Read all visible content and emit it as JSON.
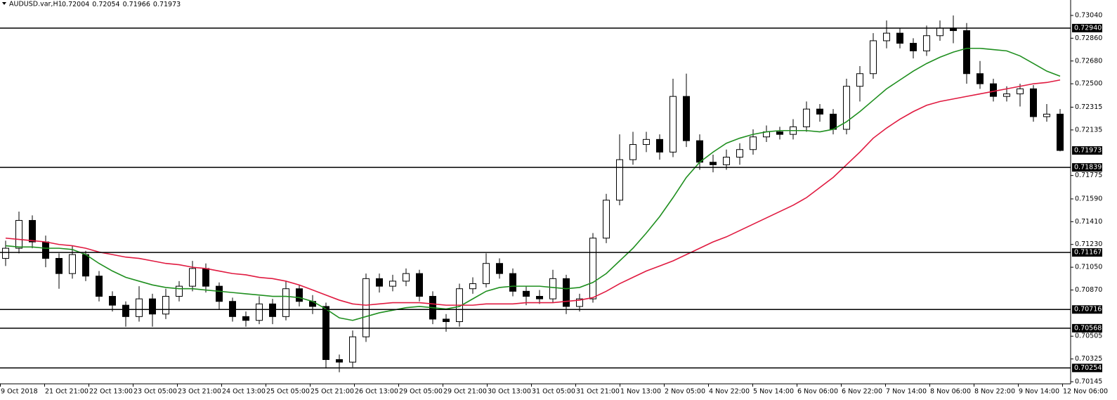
{
  "chart_data": {
    "type": "candlestick",
    "title": "AUDUSD.var,H1",
    "last_ohlc": [
      0.72004,
      0.72054,
      0.71966,
      0.71973
    ],
    "ylim": [
      0.70134,
      0.73162
    ],
    "yticks": [
      {
        "value": 0.7304,
        "label": "0.73040"
      },
      {
        "value": 0.7286,
        "label": "0.72860"
      },
      {
        "value": 0.7268,
        "label": "0.72680"
      },
      {
        "value": 0.725,
        "label": "0.72500"
      },
      0.72315,
      0.72135,
      0.71775,
      {
        "value": 0.7159,
        "label": "0.71590"
      },
      {
        "value": 0.7141,
        "label": "0.71410"
      },
      {
        "value": 0.7123,
        "label": "0.71230"
      },
      {
        "value": 0.7105,
        "label": "0.71050"
      },
      {
        "value": 0.7087,
        "label": "0.70870"
      },
      0.70505,
      0.70325,
      0.70145
    ],
    "levels": [
      {
        "value": 0.7294,
        "label": "0.72940"
      },
      0.71839,
      0.71167,
      0.70716,
      0.70568,
      0.70254
    ],
    "current_price": 0.71973,
    "time_labels": [
      "9 Oct 2018",
      "21 Oct 21:00",
      "22 Oct 13:00",
      "23 Oct 05:00",
      "23 Oct 21:00",
      "24 Oct 13:00",
      "25 Oct 05:00",
      "25 Oct 21:00",
      "26 Oct 13:00",
      "29 Oct 05:00",
      "29 Oct 21:00",
      "30 Oct 13:00",
      "31 Oct 05:00",
      "31 Oct 21:00",
      "1 Nov 13:00",
      "2 Nov 05:00",
      "4 Nov 22:00",
      "5 Nov 14:00",
      "6 Nov 06:00",
      "6 Nov 22:00",
      "7 Nov 14:00",
      "8 Nov 06:00",
      "8 Nov 22:00",
      "9 Nov 14:00",
      "12 Nov 06:00"
    ],
    "up_color": "#ffffff",
    "down_color": "#000000",
    "open": [
      0.7112,
      0.712,
      0.7142,
      0.7125,
      0.7112,
      0.71,
      0.7115,
      0.7098,
      0.7082,
      0.7075,
      0.7066,
      0.708,
      0.7068,
      0.7082,
      0.709,
      0.7104,
      0.709,
      0.7078,
      0.7066,
      0.7063,
      0.7076,
      0.7066,
      0.7088,
      0.7078,
      0.7074,
      0.7032,
      0.703,
      0.705,
      0.7096,
      0.709,
      0.7094,
      0.71,
      0.7082,
      0.7064,
      0.7062,
      0.7088,
      0.7092,
      0.7108,
      0.71,
      0.7086,
      0.7082,
      0.708,
      0.7096,
      0.7074,
      0.708,
      0.7128,
      0.7158,
      0.719,
      0.7202,
      0.7206,
      0.7196,
      0.724,
      0.7205,
      0.7188,
      0.7186,
      0.7192,
      0.7198,
      0.7208,
      0.7212,
      0.721,
      0.7216,
      0.723,
      0.7226,
      0.7214,
      0.7248,
      0.7258,
      0.7284,
      0.729,
      0.7282,
      0.7276,
      0.7288,
      0.7294,
      0.7292,
      0.7258,
      0.725,
      0.724,
      0.7242,
      0.7246,
      0.7224,
      0.7226
    ],
    "high": [
      0.7126,
      0.7149,
      0.7146,
      0.713,
      0.7116,
      0.7122,
      0.7118,
      0.7102,
      0.7086,
      0.7078,
      0.709,
      0.7084,
      0.7088,
      0.7094,
      0.711,
      0.7108,
      0.7093,
      0.7081,
      0.707,
      0.7082,
      0.708,
      0.7094,
      0.7091,
      0.7083,
      0.7077,
      0.7036,
      0.7055,
      0.71,
      0.71,
      0.7099,
      0.7104,
      0.7103,
      0.7086,
      0.7068,
      0.7092,
      0.7097,
      0.7116,
      0.7112,
      0.7104,
      0.709,
      0.7087,
      0.7103,
      0.7099,
      0.7084,
      0.7132,
      0.7163,
      0.721,
      0.7212,
      0.7212,
      0.721,
      0.7254,
      0.7258,
      0.721,
      0.7194,
      0.7198,
      0.7203,
      0.7214,
      0.7217,
      0.7216,
      0.7222,
      0.7236,
      0.7234,
      0.723,
      0.7254,
      0.7264,
      0.729,
      0.73,
      0.7294,
      0.7286,
      0.7296,
      0.73,
      0.7304,
      0.7298,
      0.7268,
      0.7254,
      0.7248,
      0.725,
      0.7249,
      0.7234,
      0.723
    ],
    "low": [
      0.7106,
      0.7116,
      0.712,
      0.7105,
      0.7088,
      0.7096,
      0.7094,
      0.7078,
      0.707,
      0.7058,
      0.7062,
      0.7058,
      0.7064,
      0.7078,
      0.7086,
      0.7085,
      0.7072,
      0.7062,
      0.7058,
      0.706,
      0.706,
      0.7063,
      0.7074,
      0.7068,
      0.7025,
      0.7022,
      0.7026,
      0.7046,
      0.7085,
      0.7086,
      0.709,
      0.7078,
      0.706,
      0.7054,
      0.7058,
      0.7084,
      0.7089,
      0.7096,
      0.7082,
      0.7075,
      0.7076,
      0.7077,
      0.7068,
      0.707,
      0.7077,
      0.7124,
      0.7154,
      0.7186,
      0.7196,
      0.719,
      0.7192,
      0.72,
      0.7182,
      0.718,
      0.7182,
      0.7186,
      0.7194,
      0.7204,
      0.7206,
      0.7206,
      0.7212,
      0.722,
      0.721,
      0.721,
      0.7236,
      0.7254,
      0.7278,
      0.7278,
      0.727,
      0.7272,
      0.7284,
      0.7282,
      0.725,
      0.7246,
      0.7236,
      0.7236,
      0.7232,
      0.722,
      0.722,
      0.71966
    ],
    "close": [
      0.712,
      0.7142,
      0.7125,
      0.7112,
      0.71,
      0.7115,
      0.7098,
      0.7082,
      0.7075,
      0.7066,
      0.708,
      0.7068,
      0.7082,
      0.709,
      0.7104,
      0.709,
      0.7078,
      0.7066,
      0.7063,
      0.7076,
      0.7066,
      0.7088,
      0.7078,
      0.7074,
      0.7032,
      0.703,
      0.705,
      0.7096,
      0.709,
      0.7094,
      0.71,
      0.7082,
      0.7064,
      0.7062,
      0.7088,
      0.7092,
      0.7108,
      0.71,
      0.7086,
      0.7082,
      0.708,
      0.7096,
      0.7074,
      0.708,
      0.7128,
      0.7158,
      0.719,
      0.7202,
      0.7206,
      0.7196,
      0.724,
      0.7205,
      0.7188,
      0.7186,
      0.7192,
      0.7198,
      0.7208,
      0.7212,
      0.721,
      0.7216,
      0.723,
      0.7226,
      0.7214,
      0.7248,
      0.7258,
      0.7284,
      0.729,
      0.7282,
      0.7276,
      0.7288,
      0.7294,
      0.7292,
      0.7258,
      0.725,
      0.724,
      0.7242,
      0.7246,
      0.7224,
      0.7226,
      0.71973
    ],
    "lines": [
      {
        "color": "#1f8f1f",
        "values": [
          0.7122,
          0.7121,
          0.7121,
          0.712,
          0.712,
          0.7119,
          0.7115,
          0.7108,
          0.7102,
          0.7097,
          0.7094,
          0.7091,
          0.7089,
          0.7088,
          0.7088,
          0.7087,
          0.7086,
          0.7085,
          0.7084,
          0.7083,
          0.7082,
          0.7082,
          0.7081,
          0.7078,
          0.7072,
          0.7065,
          0.7063,
          0.7066,
          0.7069,
          0.7071,
          0.7073,
          0.7074,
          0.7073,
          0.7072,
          0.7074,
          0.708,
          0.7086,
          0.7089,
          0.709,
          0.709,
          0.709,
          0.7089,
          0.7088,
          0.7089,
          0.7093,
          0.71,
          0.711,
          0.712,
          0.7132,
          0.7145,
          0.716,
          0.7176,
          0.7188,
          0.7196,
          0.7203,
          0.7207,
          0.721,
          0.7212,
          0.7213,
          0.7213,
          0.7213,
          0.7212,
          0.7214,
          0.722,
          0.7228,
          0.7237,
          0.7246,
          0.7253,
          0.726,
          0.7266,
          0.7271,
          0.7275,
          0.7278,
          0.7278,
          0.7277,
          0.7276,
          0.7272,
          0.7266,
          0.726,
          0.7256
        ]
      },
      {
        "color": "#e01a40",
        "values": [
          0.7128,
          0.7127,
          0.7126,
          0.7125,
          0.7123,
          0.7122,
          0.712,
          0.7117,
          0.7115,
          0.7113,
          0.7112,
          0.711,
          0.7108,
          0.7107,
          0.7105,
          0.7104,
          0.7102,
          0.71,
          0.7099,
          0.7097,
          0.7096,
          0.7094,
          0.7091,
          0.7087,
          0.7083,
          0.7079,
          0.7076,
          0.7075,
          0.7076,
          0.7077,
          0.7077,
          0.7077,
          0.7076,
          0.7075,
          0.7075,
          0.7075,
          0.7076,
          0.7076,
          0.7076,
          0.7077,
          0.7077,
          0.7077,
          0.7078,
          0.7079,
          0.7081,
          0.7086,
          0.7092,
          0.7097,
          0.7102,
          0.7106,
          0.711,
          0.7115,
          0.712,
          0.7125,
          0.7129,
          0.7134,
          0.7139,
          0.7144,
          0.7149,
          0.7154,
          0.716,
          0.7168,
          0.7176,
          0.7186,
          0.7196,
          0.7207,
          0.7215,
          0.7222,
          0.7228,
          0.7233,
          0.7236,
          0.7238,
          0.724,
          0.7242,
          0.7244,
          0.7246,
          0.7248,
          0.725,
          0.7251,
          0.7253
        ]
      }
    ]
  }
}
